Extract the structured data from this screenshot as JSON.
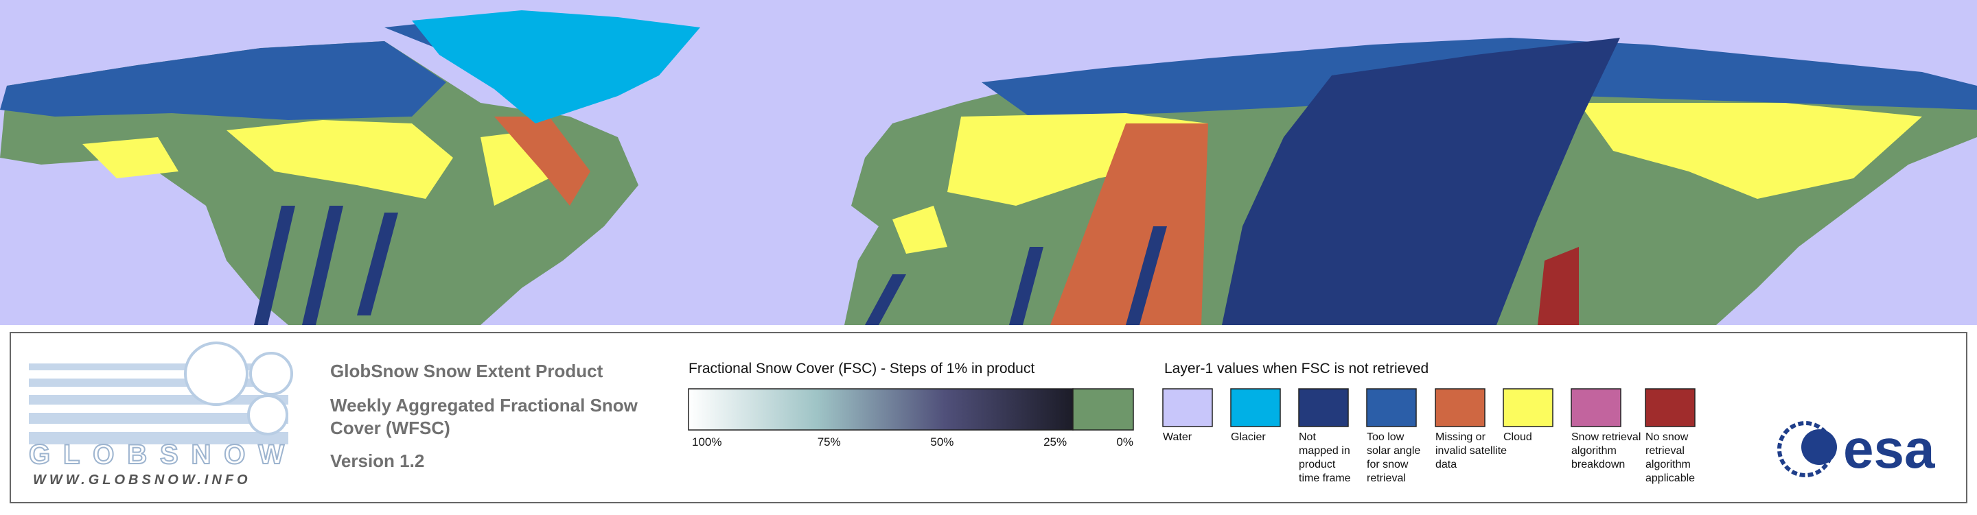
{
  "logo": {
    "name": "GLOBSNOW",
    "url": "WWW.GLOBSNOW.INFO"
  },
  "header": {
    "title": "GlobSnow Snow Extent Product",
    "subtitle_lines": [
      "Weekly Aggregated Fractional Snow",
      "Cover (WFSC)"
    ],
    "version": "Version 1.2"
  },
  "fsc_legend": {
    "title": "Fractional Snow Cover (FSC) - Steps of 1% in product",
    "tick_labels": [
      "100%",
      "75%",
      "50%",
      "25%",
      "0%"
    ],
    "gradient_colors": [
      "#ffffff",
      "#9fc4c6",
      "#50507a",
      "#1c1c28"
    ],
    "snow_free_color": "#6e976a"
  },
  "layer_legend": {
    "title": "Layer-1 values when FSC is not retrieved",
    "items": [
      {
        "color": "#c8c6fa",
        "label_lines": [
          "Water"
        ]
      },
      {
        "color": "#00b0e6",
        "label_lines": [
          "Glacier"
        ]
      },
      {
        "color": "#233a7c",
        "label_lines": [
          "Not",
          "mapped in",
          "product",
          "time frame"
        ]
      },
      {
        "color": "#2b5ea8",
        "label_lines": [
          "Too low",
          "solar angle",
          "for snow",
          "retrieval"
        ]
      },
      {
        "color": "#cf6742",
        "label_lines": [
          "Missing or",
          "invalid satellite",
          "data"
        ]
      },
      {
        "color": "#fcfc5e",
        "label_lines": [
          "Cloud"
        ]
      },
      {
        "color": "#c2649e",
        "label_lines": [
          "Snow retrieval",
          "algorithm",
          "breakdown"
        ]
      },
      {
        "color": "#a02c2c",
        "label_lines": [
          "No snow",
          "retrieval",
          "algorithm",
          "applicable"
        ]
      }
    ]
  },
  "agency_logo": "esa"
}
